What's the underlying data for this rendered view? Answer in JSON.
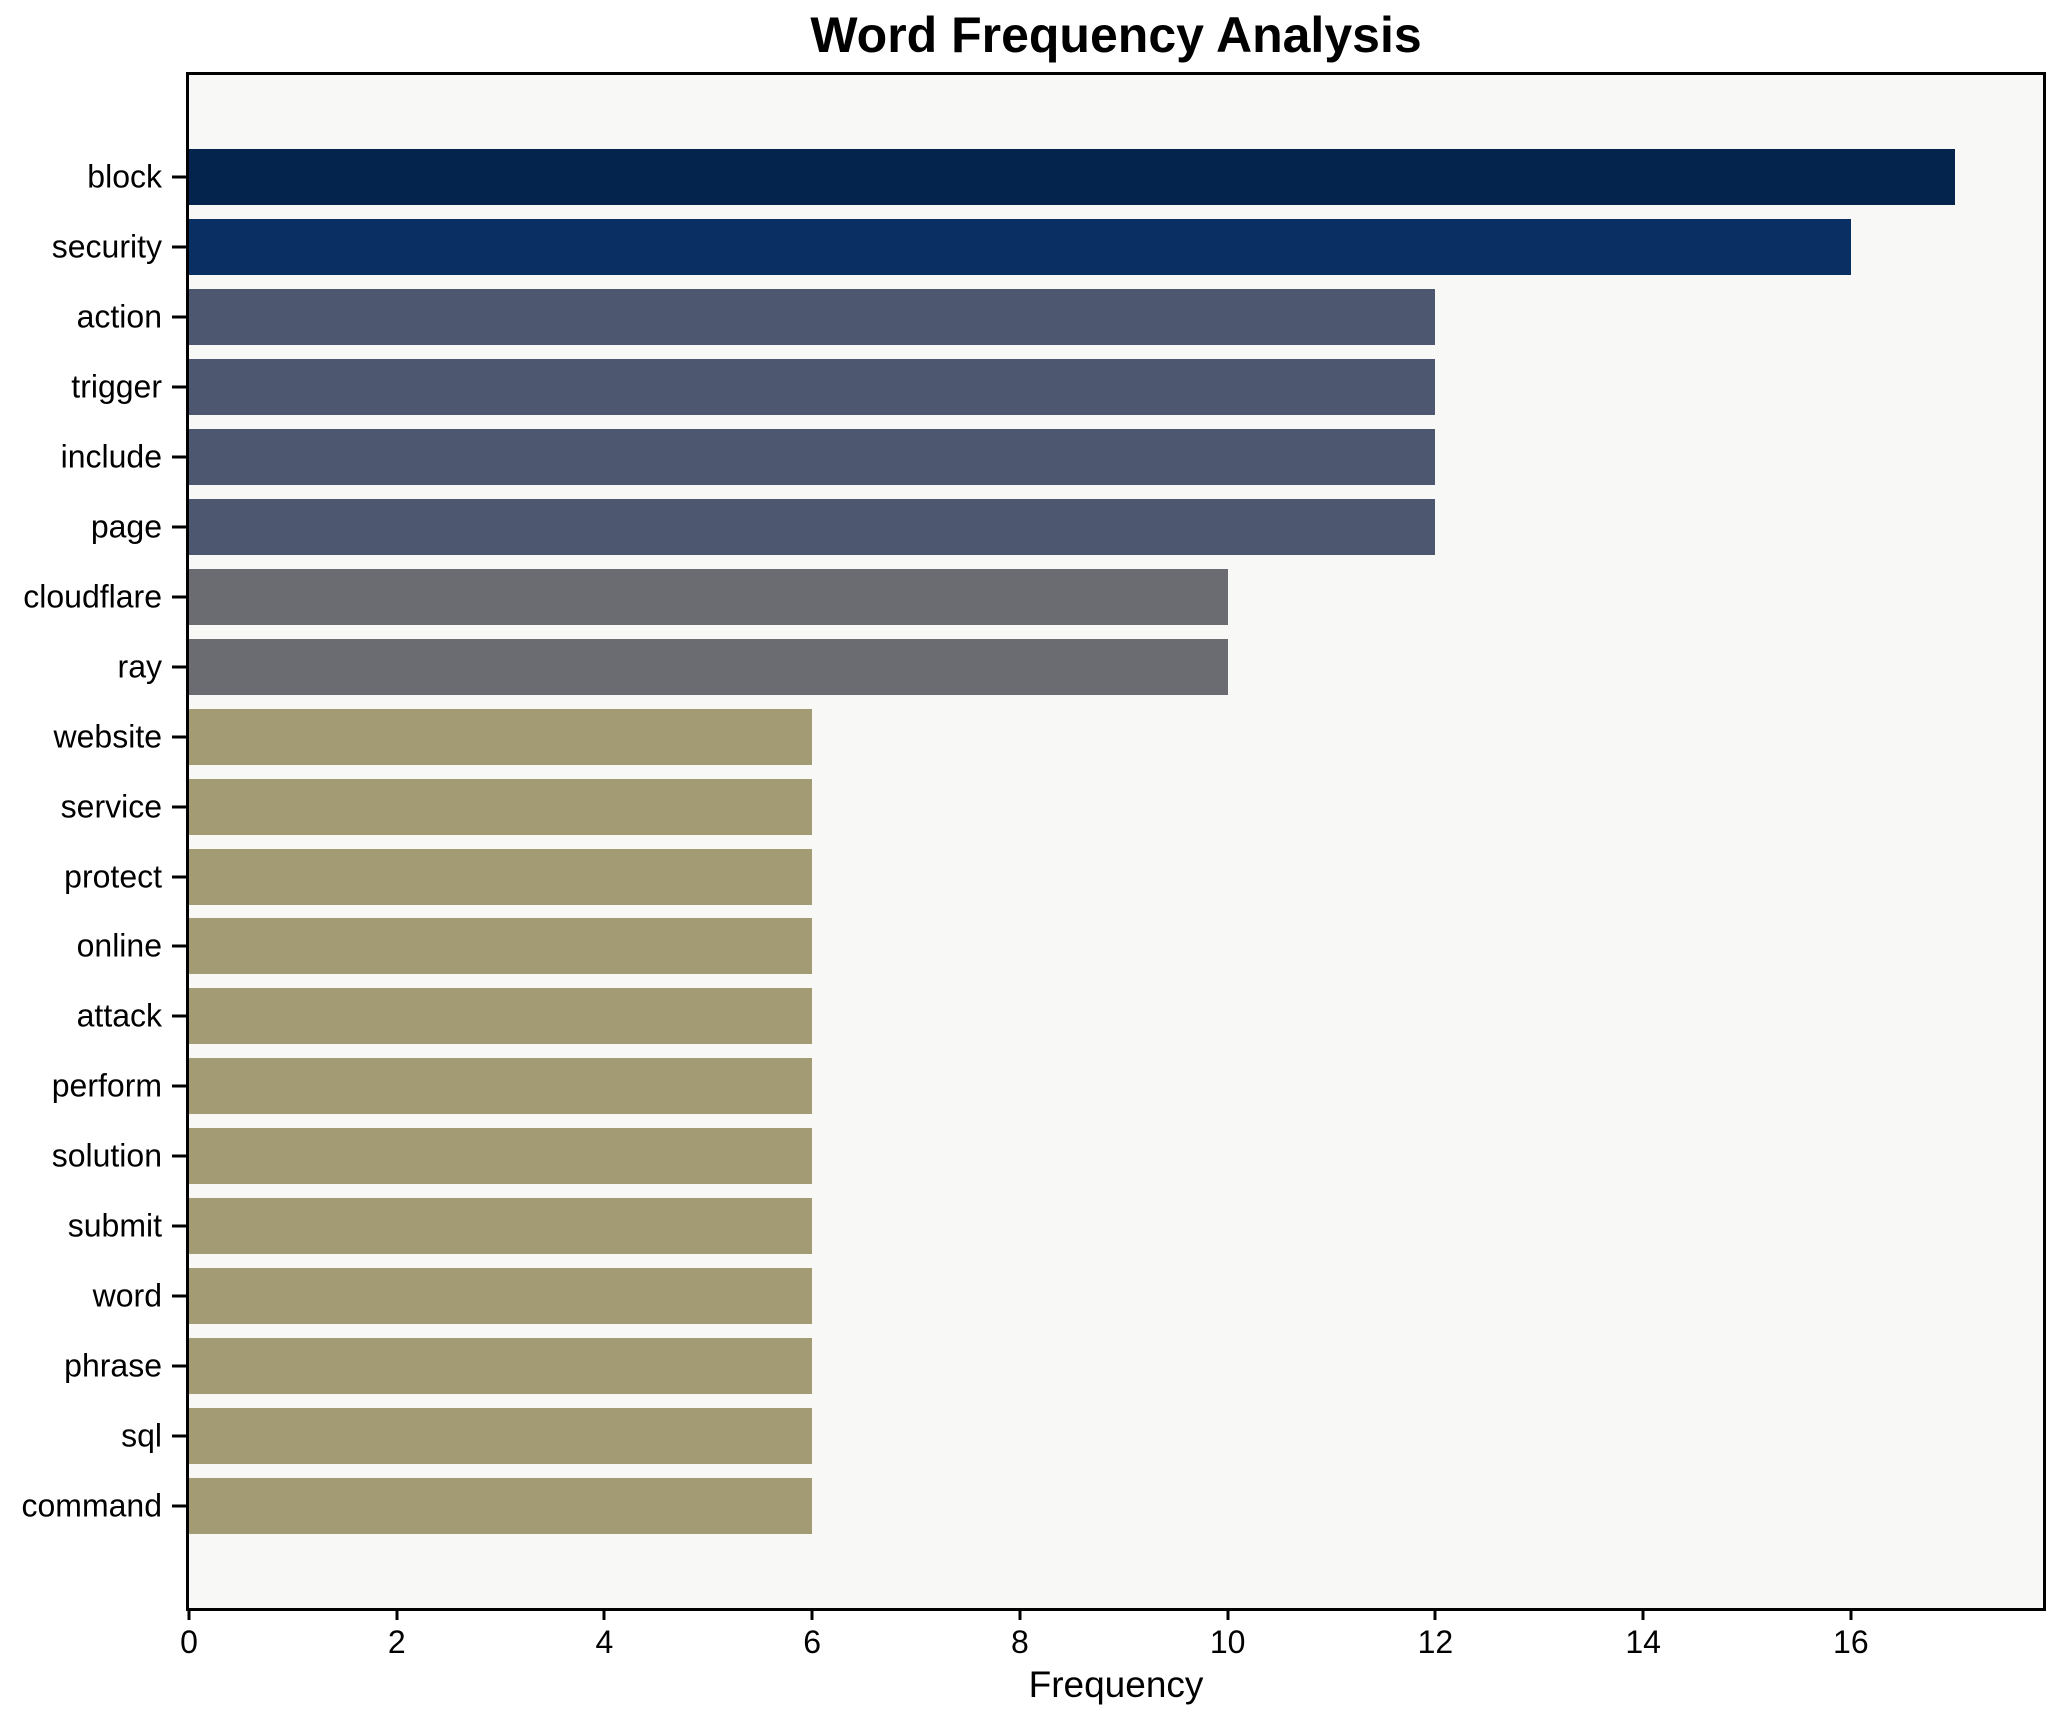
{
  "title": "Word Frequency Analysis",
  "x_axis": {
    "label": "Frequency",
    "ticks": [
      0,
      2,
      4,
      6,
      8,
      10,
      12,
      14,
      16
    ],
    "max": 17.85
  },
  "style": {
    "plot_background": "#f8f8f6",
    "figure_background": "#ffffff",
    "spine_color": "#000000",
    "grid": "off",
    "legend": "none"
  },
  "chart_data": {
    "type": "bar",
    "orientation": "horizontal",
    "title": "Word Frequency Analysis",
    "xlabel": "Frequency",
    "ylabel": "",
    "xlim": [
      0,
      17.85
    ],
    "categories": [
      "block",
      "security",
      "action",
      "trigger",
      "include",
      "page",
      "cloudflare",
      "ray",
      "website",
      "service",
      "protect",
      "online",
      "attack",
      "perform",
      "solution",
      "submit",
      "word",
      "phrase",
      "sql",
      "command"
    ],
    "values": [
      17,
      16,
      12,
      12,
      12,
      12,
      10,
      10,
      6,
      6,
      6,
      6,
      6,
      6,
      6,
      6,
      6,
      6,
      6,
      6
    ],
    "bar_colors": [
      "#04234d",
      "#0a2f63",
      "#4d5770",
      "#4d5770",
      "#4d5770",
      "#4d5770",
      "#6a6c71",
      "#6a6c71",
      "#a39b74",
      "#a39b74",
      "#a39b74",
      "#a39b74",
      "#a39b74",
      "#a39b74",
      "#a39b74",
      "#a39b74",
      "#a39b74",
      "#a39b74",
      "#a39b74",
      "#a39b74"
    ]
  }
}
